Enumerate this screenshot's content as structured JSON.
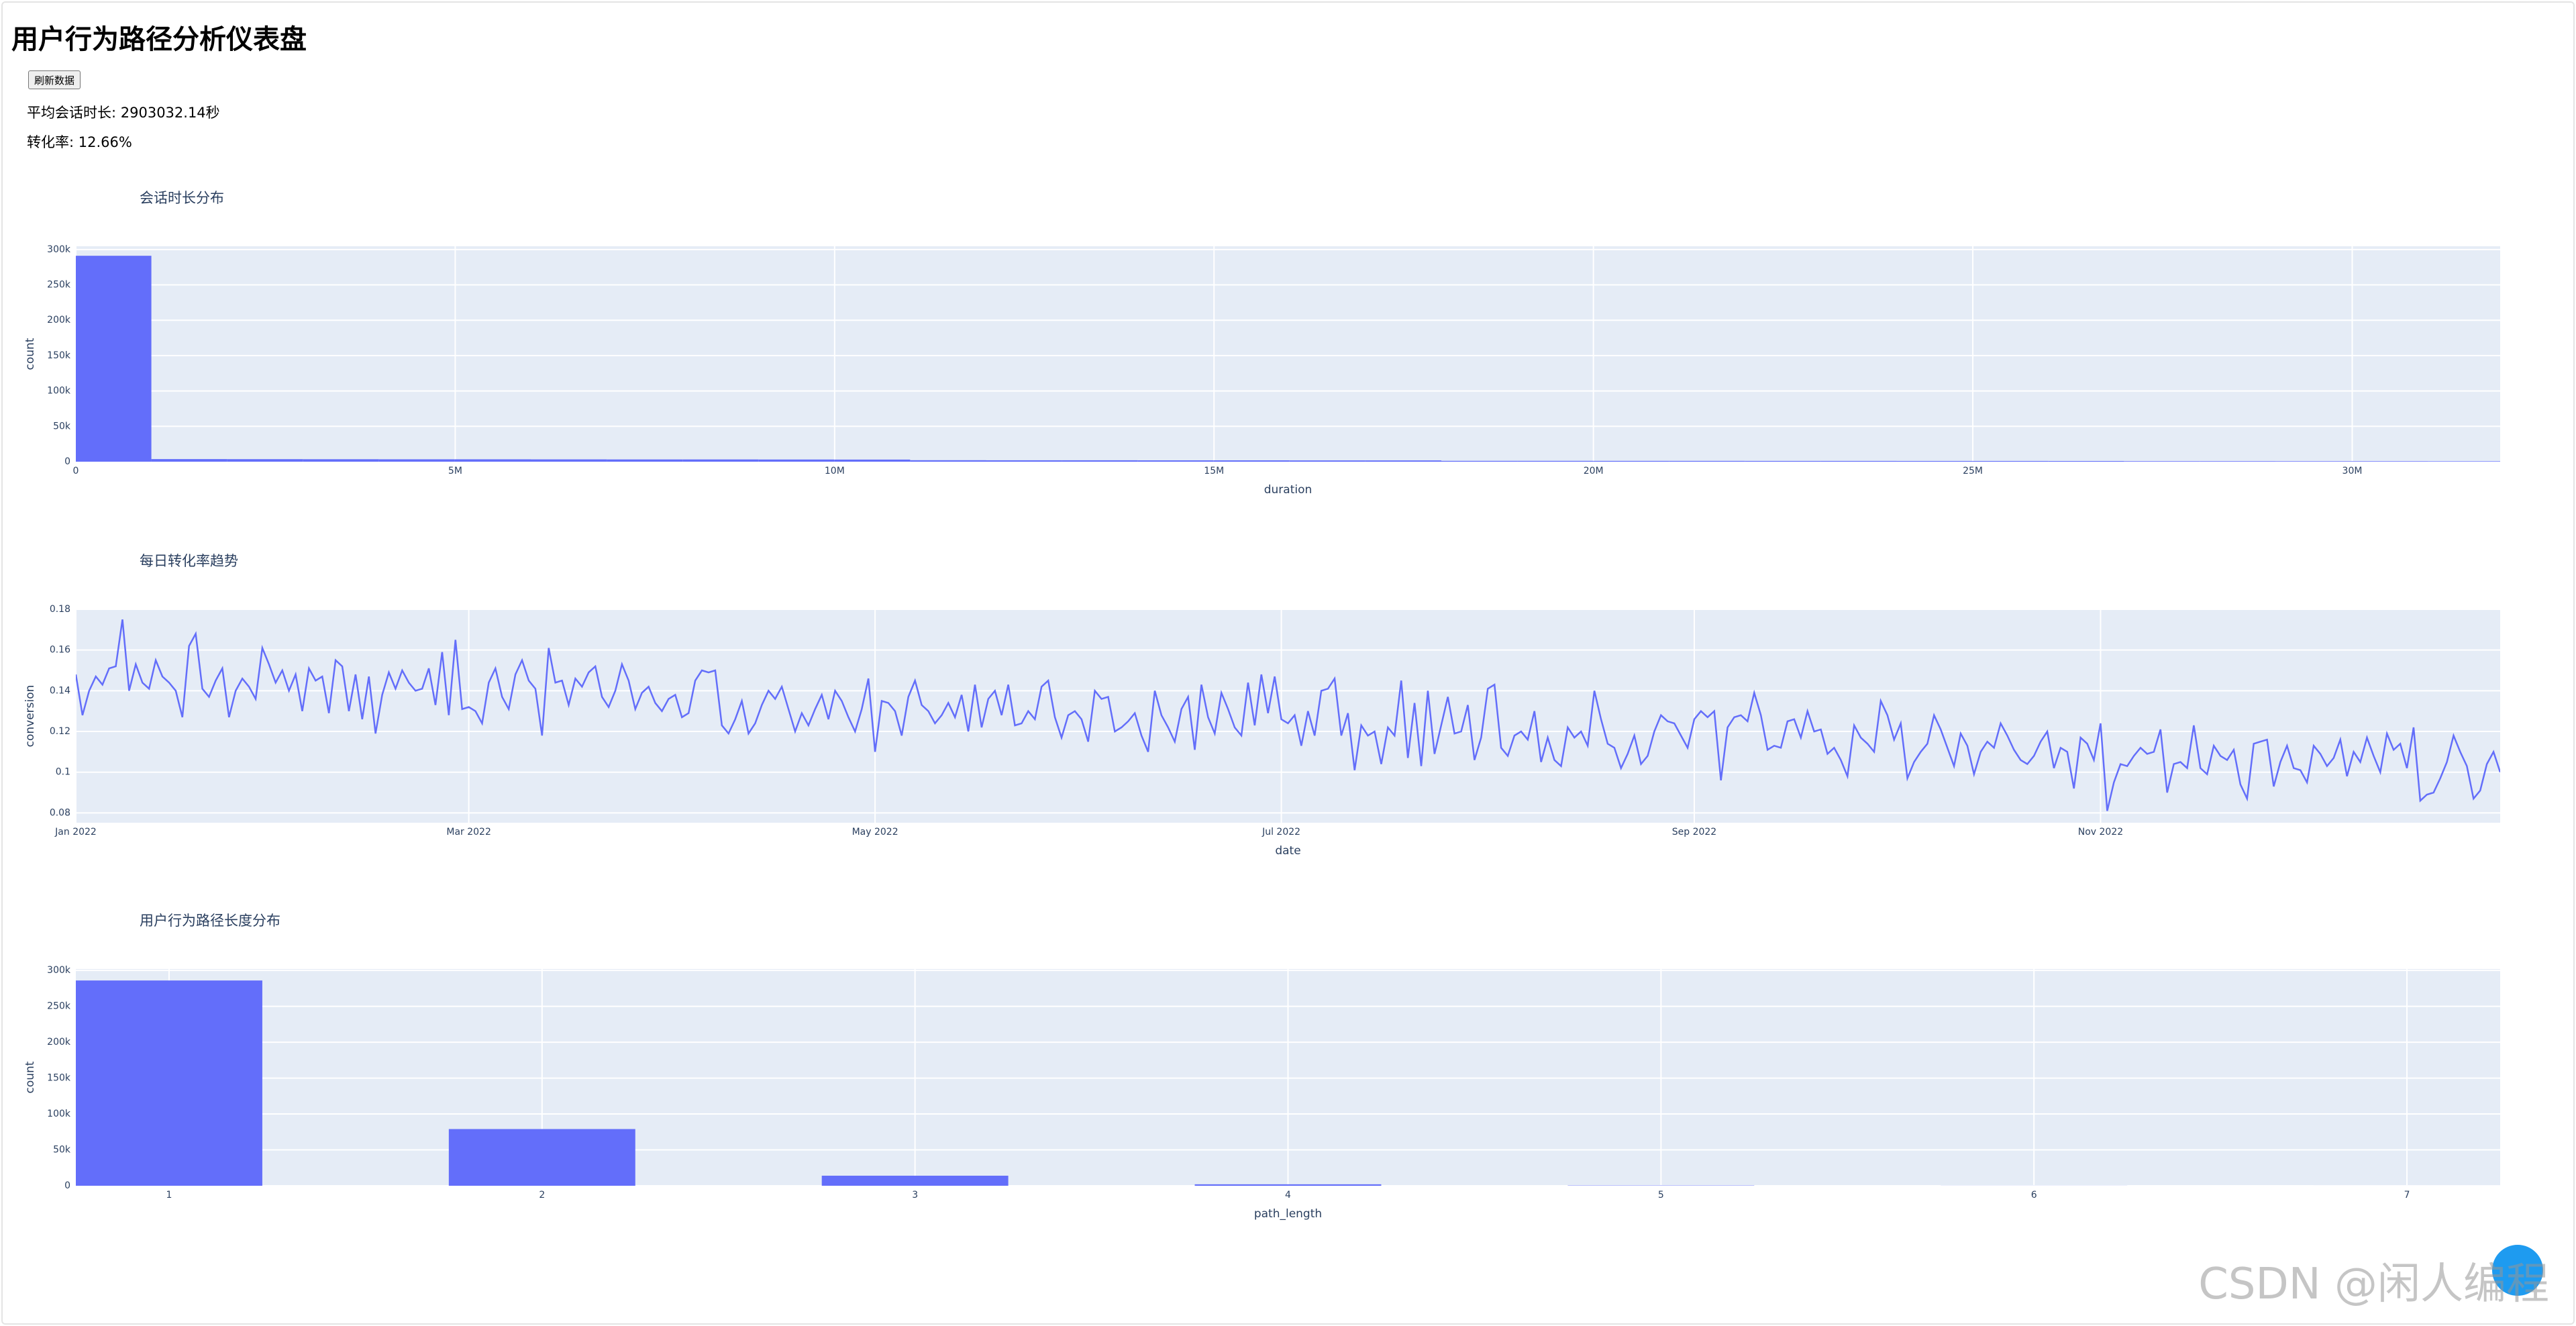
{
  "header": {
    "title": "用户行为路径分析仪表盘",
    "button": "刷新数据",
    "avg_session": "平均会话时长: 2903032.14秒",
    "conversion": "转化率: 12.66%"
  },
  "watermark": "CSDN @闲人编程",
  "chart_data": [
    {
      "type": "histogram",
      "title": "会话时长分布",
      "x_label": "duration",
      "y_label": "count",
      "color": "#636efa",
      "grid": true,
      "bins": [
        0,
        1000000,
        2000000,
        3000000,
        4000000,
        5000000,
        6000000,
        7000000,
        8000000,
        9000000,
        10000000,
        11000000,
        12000000,
        13000000,
        14000000,
        15000000,
        16000000,
        17000000,
        18000000,
        19000000,
        20000000,
        21000000,
        22000000,
        23000000,
        24000000,
        25000000,
        26000000,
        27000000,
        28000000,
        29000000,
        30000000,
        31000000,
        32000000
      ],
      "counts": [
        290700,
        3200,
        3100,
        3000,
        2900,
        2900,
        2800,
        2700,
        2700,
        2600,
        2500,
        1600,
        1500,
        1500,
        1400,
        1400,
        1300,
        1300,
        700,
        700,
        650,
        650,
        600,
        600,
        550,
        550,
        500,
        300,
        300,
        250,
        250,
        200
      ],
      "xlim": [
        0,
        31950000
      ],
      "xticks": [
        0,
        {
          "value": 5000000,
          "label": "5M"
        },
        {
          "value": 10000000,
          "label": "10M"
        },
        {
          "value": 15000000,
          "label": "15M"
        },
        {
          "value": 20000000,
          "label": "20M"
        },
        {
          "value": 25000000,
          "label": "25M"
        },
        {
          "value": 30000000,
          "label": "30M"
        }
      ],
      "ylim": [
        0,
        304600
      ],
      "yticks": [
        0,
        {
          "value": 50000,
          "label": "50k"
        },
        {
          "value": 100000,
          "label": "100k"
        },
        {
          "value": 150000,
          "label": "150k"
        },
        {
          "value": 200000,
          "label": "200k"
        },
        {
          "value": 250000,
          "label": "250k"
        },
        {
          "value": 300000,
          "label": "300k"
        }
      ]
    },
    {
      "type": "line",
      "title": "每日转化率趋势",
      "x_label": "date",
      "y_label": "conversion",
      "color": "#636efa",
      "grid": true,
      "values": [
        0.148,
        0.128,
        0.14,
        0.147,
        0.143,
        0.151,
        0.152,
        0.175,
        0.14,
        0.153,
        0.144,
        0.141,
        0.155,
        0.147,
        0.144,
        0.14,
        0.127,
        0.162,
        0.168,
        0.141,
        0.137,
        0.145,
        0.151,
        0.127,
        0.14,
        0.146,
        0.142,
        0.136,
        0.161,
        0.153,
        0.144,
        0.15,
        0.14,
        0.148,
        0.13,
        0.151,
        0.145,
        0.147,
        0.129,
        0.155,
        0.152,
        0.13,
        0.148,
        0.126,
        0.147,
        0.119,
        0.138,
        0.149,
        0.141,
        0.15,
        0.144,
        0.14,
        0.141,
        0.151,
        0.133,
        0.159,
        0.128,
        0.165,
        0.131,
        0.132,
        0.13,
        0.124,
        0.144,
        0.151,
        0.137,
        0.131,
        0.148,
        0.155,
        0.145,
        0.141,
        0.118,
        0.161,
        0.144,
        0.145,
        0.133,
        0.146,
        0.142,
        0.149,
        0.152,
        0.137,
        0.132,
        0.14,
        0.153,
        0.145,
        0.131,
        0.139,
        0.142,
        0.134,
        0.13,
        0.136,
        0.138,
        0.127,
        0.129,
        0.145,
        0.15,
        0.149,
        0.15,
        0.123,
        0.119,
        0.126,
        0.135,
        0.119,
        0.124,
        0.133,
        0.14,
        0.136,
        0.142,
        0.131,
        0.12,
        0.129,
        0.123,
        0.131,
        0.138,
        0.126,
        0.14,
        0.135,
        0.127,
        0.12,
        0.131,
        0.146,
        0.11,
        0.135,
        0.134,
        0.13,
        0.118,
        0.137,
        0.145,
        0.133,
        0.13,
        0.124,
        0.128,
        0.134,
        0.127,
        0.138,
        0.12,
        0.143,
        0.122,
        0.136,
        0.14,
        0.128,
        0.143,
        0.123,
        0.124,
        0.13,
        0.126,
        0.142,
        0.145,
        0.127,
        0.117,
        0.128,
        0.13,
        0.126,
        0.115,
        0.14,
        0.136,
        0.137,
        0.12,
        0.122,
        0.125,
        0.129,
        0.118,
        0.11,
        0.14,
        0.128,
        0.122,
        0.115,
        0.131,
        0.137,
        0.111,
        0.143,
        0.127,
        0.119,
        0.139,
        0.131,
        0.122,
        0.118,
        0.144,
        0.123,
        0.148,
        0.129,
        0.147,
        0.126,
        0.124,
        0.128,
        0.113,
        0.13,
        0.118,
        0.14,
        0.141,
        0.146,
        0.118,
        0.129,
        0.101,
        0.123,
        0.118,
        0.12,
        0.104,
        0.122,
        0.118,
        0.145,
        0.107,
        0.134,
        0.103,
        0.14,
        0.109,
        0.123,
        0.137,
        0.119,
        0.12,
        0.133,
        0.106,
        0.117,
        0.141,
        0.143,
        0.112,
        0.108,
        0.118,
        0.12,
        0.116,
        0.13,
        0.105,
        0.117,
        0.106,
        0.103,
        0.122,
        0.117,
        0.12,
        0.113,
        0.14,
        0.126,
        0.114,
        0.112,
        0.102,
        0.109,
        0.118,
        0.104,
        0.108,
        0.12,
        0.128,
        0.125,
        0.124,
        0.118,
        0.112,
        0.126,
        0.13,
        0.127,
        0.13,
        0.096,
        0.122,
        0.127,
        0.128,
        0.125,
        0.139,
        0.128,
        0.111,
        0.113,
        0.112,
        0.125,
        0.126,
        0.117,
        0.13,
        0.12,
        0.121,
        0.109,
        0.112,
        0.106,
        0.098,
        0.123,
        0.117,
        0.114,
        0.11,
        0.135,
        0.128,
        0.116,
        0.124,
        0.097,
        0.105,
        0.11,
        0.114,
        0.128,
        0.121,
        0.112,
        0.103,
        0.119,
        0.113,
        0.099,
        0.11,
        0.115,
        0.112,
        0.124,
        0.118,
        0.111,
        0.106,
        0.104,
        0.108,
        0.115,
        0.12,
        0.102,
        0.112,
        0.11,
        0.092,
        0.117,
        0.114,
        0.106,
        0.124,
        0.081,
        0.095,
        0.104,
        0.103,
        0.108,
        0.112,
        0.109,
        0.11,
        0.121,
        0.09,
        0.104,
        0.105,
        0.102,
        0.123,
        0.102,
        0.099,
        0.113,
        0.108,
        0.106,
        0.111,
        0.094,
        0.087,
        0.114,
        0.115,
        0.116,
        0.093,
        0.105,
        0.113,
        0.102,
        0.101,
        0.095,
        0.113,
        0.109,
        0.103,
        0.107,
        0.116,
        0.098,
        0.11,
        0.105,
        0.117,
        0.108,
        0.1,
        0.119,
        0.111,
        0.114,
        0.102,
        0.122,
        0.086,
        0.089,
        0.09,
        0.097,
        0.105,
        0.118,
        0.11,
        0.103,
        0.087,
        0.091,
        0.104,
        0.11,
        0.1
      ],
      "xlim": [
        0,
        364
      ],
      "xticks": [
        {
          "value": 0,
          "label": "Jan 2022"
        },
        {
          "value": 59,
          "label": "Mar 2022"
        },
        {
          "value": 120,
          "label": "May 2022"
        },
        {
          "value": 181,
          "label": "Jul 2022"
        },
        {
          "value": 243,
          "label": "Sep 2022"
        },
        {
          "value": 304,
          "label": "Nov 2022"
        }
      ],
      "ylim": [
        0.0752,
        0.18
      ],
      "yticks": [
        0.08,
        0.1,
        0.12,
        0.14,
        0.16,
        0.18
      ]
    },
    {
      "type": "bar",
      "title": "用户行为路径长度分布",
      "x_label": "path_length",
      "y_label": "count",
      "color": "#636efa",
      "grid": true,
      "x": [
        1,
        2,
        3,
        4,
        5,
        6,
        7
      ],
      "values": [
        286000,
        79000,
        14000,
        2000,
        400,
        100,
        20
      ],
      "xlim": [
        0.75,
        7.25
      ],
      "xticks": [
        1,
        2,
        3,
        4,
        5,
        6,
        7
      ],
      "ylim": [
        0,
        302000
      ],
      "yticks": [
        0,
        {
          "value": 50000,
          "label": "50k"
        },
        {
          "value": 100000,
          "label": "100k"
        },
        {
          "value": 150000,
          "label": "150k"
        },
        {
          "value": 200000,
          "label": "200k"
        },
        {
          "value": 250000,
          "label": "250k"
        },
        {
          "value": 300000,
          "label": "300k"
        }
      ]
    }
  ]
}
